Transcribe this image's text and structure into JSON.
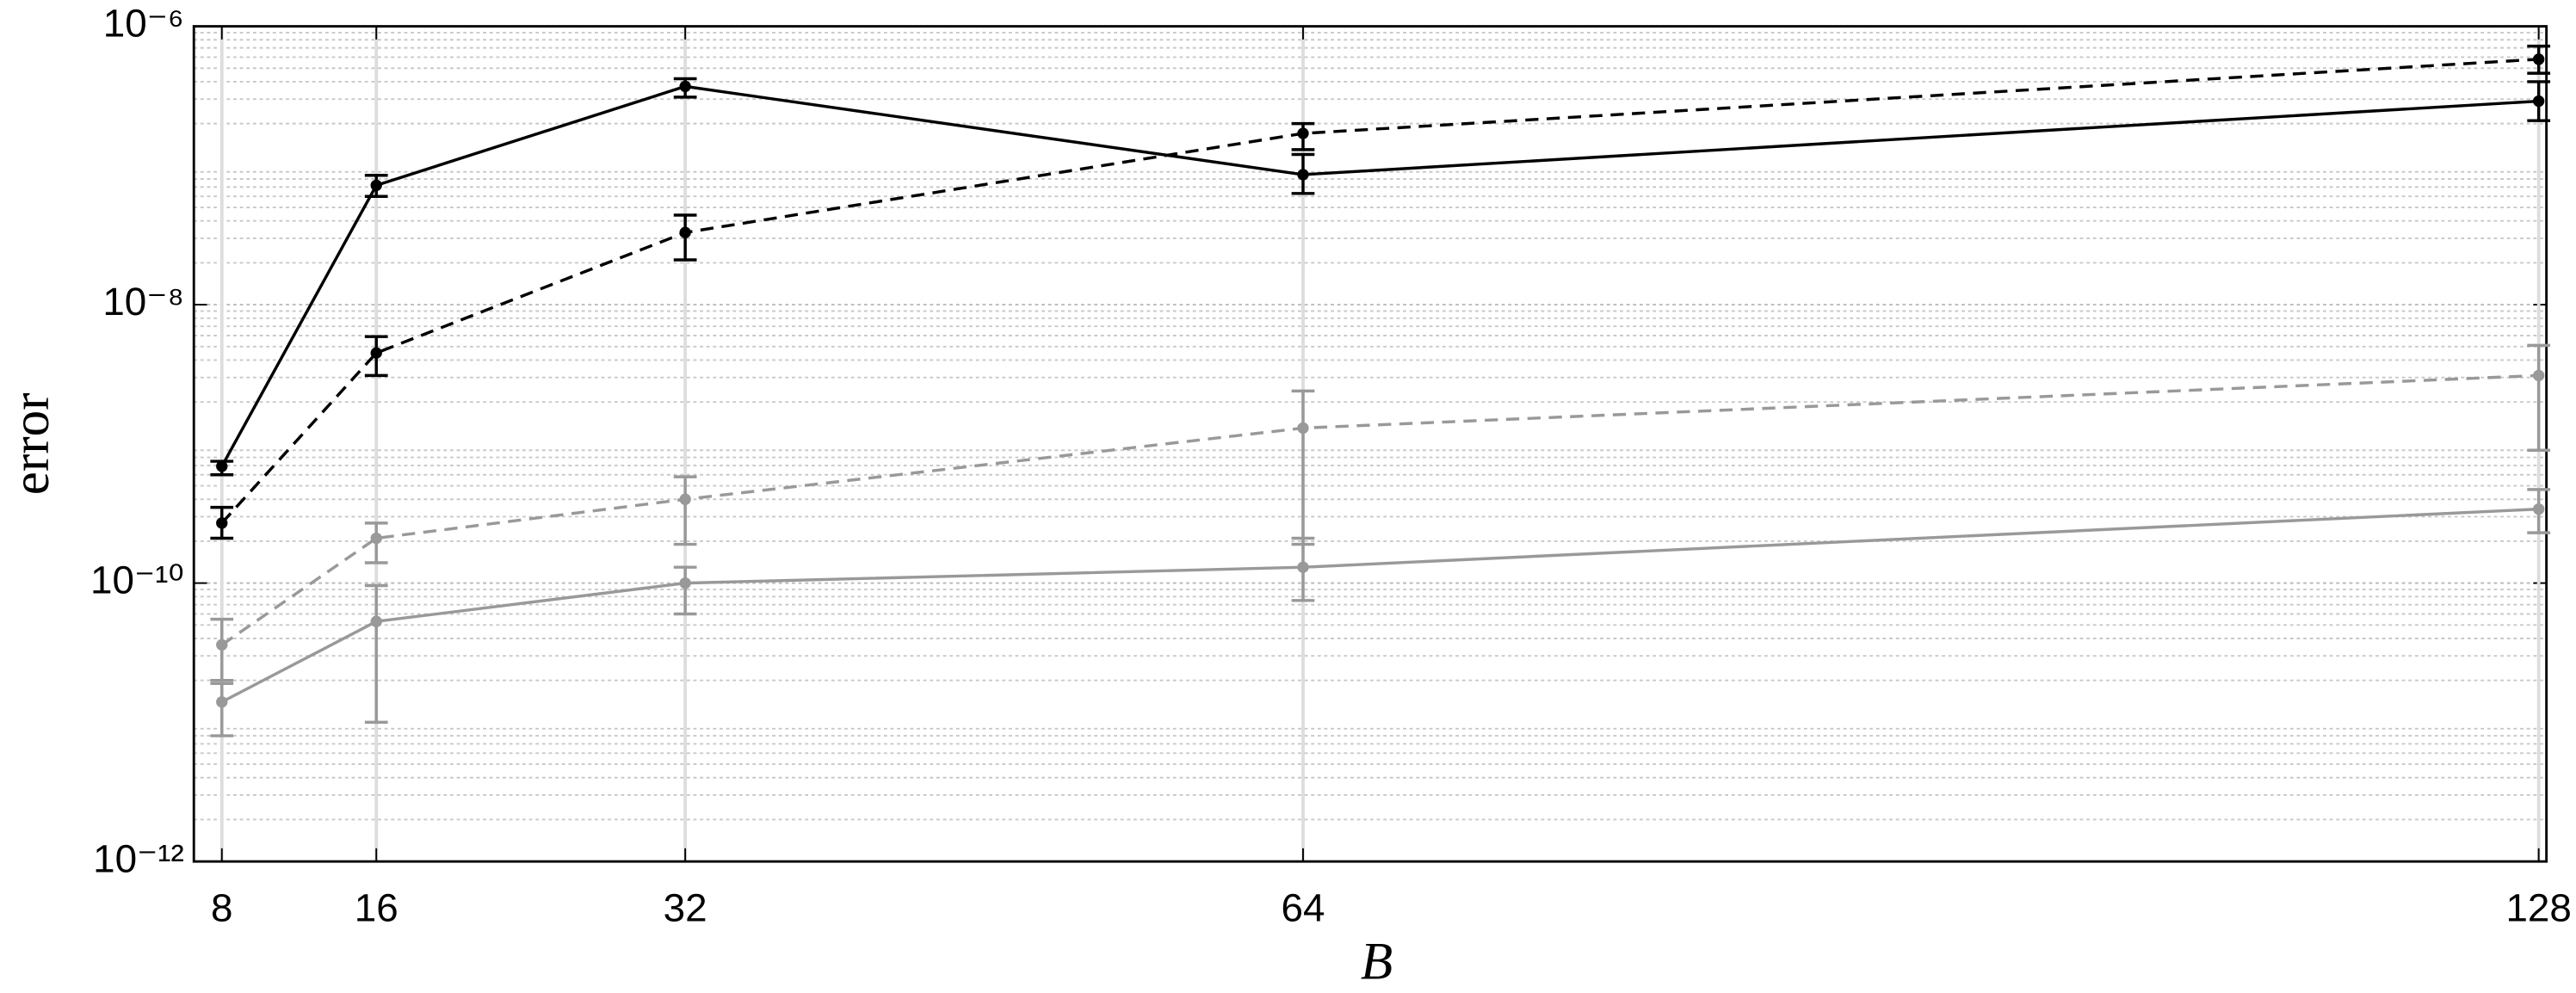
{
  "chart_data": {
    "type": "line",
    "x_label": "B",
    "y_label": "error",
    "x": [
      8,
      16,
      32,
      64,
      128
    ],
    "xlim": [
      6.55,
      128.4
    ],
    "xticks": [
      8,
      16,
      32,
      64,
      128
    ],
    "ylim": [
      1e-12,
      1e-06
    ],
    "log_y": true,
    "grid": true,
    "minor_grid": true,
    "yticks": [
      {
        "value": 1e-12,
        "label": "10⁻¹²"
      },
      {
        "value": 1e-10,
        "label": "10⁻¹⁰"
      },
      {
        "value": 1e-08,
        "label": "10⁻⁸"
      },
      {
        "value": 1e-06,
        "label": "10⁻⁶"
      }
    ],
    "series": [
      {
        "color": "#000000",
        "linestyle": "solid",
        "values": [
          6.9e-10,
          7.2e-08,
          3.7e-07,
          8.6e-08,
          2.9e-07
        ],
        "lower": [
          6e-10,
          6e-08,
          3.1e-07,
          6.3e-08,
          2.1e-07
        ],
        "upper": [
          7.5e-10,
          8.5e-08,
          4.2e-07,
          1.2e-07,
          4e-07
        ]
      },
      {
        "color": "#000000",
        "linestyle": "dashed",
        "values": [
          2.7e-10,
          4.5e-09,
          3.3e-08,
          1.7e-07,
          5.8e-07
        ],
        "lower": [
          2.1e-10,
          3.1e-09,
          2.1e-08,
          1.3e-07,
          4.6e-07
        ],
        "upper": [
          3.5e-10,
          5.9e-09,
          4.4e-08,
          2e-07,
          7.2e-07
        ]
      },
      {
        "color": "#999999",
        "linestyle": "dashed",
        "values": [
          3.6e-11,
          2.1e-10,
          4e-10,
          1.3e-09,
          3.1e-09
        ],
        "lower": [
          2e-11,
          1.4e-10,
          1.9e-10,
          1.9e-10,
          9e-10
        ],
        "upper": [
          5.5e-11,
          2.7e-10,
          5.8e-10,
          2.4e-09,
          5.1e-09
        ]
      },
      {
        "color": "#999999",
        "linestyle": "solid",
        "values": [
          1.4e-11,
          5.3e-11,
          1e-10,
          1.3e-10,
          3.4e-10
        ],
        "lower": [
          8e-12,
          1e-11,
          6e-11,
          7.5e-11,
          2.3e-10
        ],
        "upper": [
          1.9e-11,
          9.6e-11,
          1.3e-10,
          2.1e-10,
          4.7e-10
        ]
      }
    ]
  }
}
